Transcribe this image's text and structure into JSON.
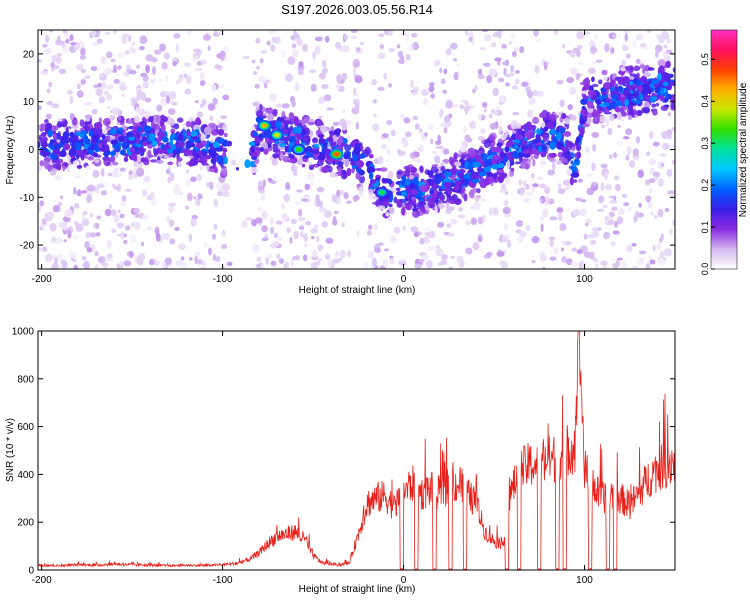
{
  "figure_title": "S197.2026.003.05.56.R14",
  "chart_data": [
    {
      "type": "heatmap",
      "title": "",
      "xlabel": "Height of straight line (km)",
      "ylabel": "Frequency (Hz)",
      "xlim": [
        -202,
        150
      ],
      "ylim": [
        -25,
        25
      ],
      "xticks": [
        -200,
        -100,
        0,
        100
      ],
      "xtick_labels": [
        "-200",
        "-100",
        "0",
        "100"
      ],
      "yticks": [
        -20,
        -10,
        0,
        10,
        20
      ],
      "ytick_labels": [
        "-20",
        "-10",
        "0",
        "10",
        "20"
      ],
      "colorbar": {
        "label": "Normalized spectral amplitude",
        "range": [
          0,
          0.57
        ],
        "ticks": [
          0.0,
          0.1,
          0.2,
          0.3,
          0.4,
          0.5
        ],
        "tick_labels": [
          "0.0",
          "0.1",
          "0.2",
          "0.3",
          "0.4",
          "0.5"
        ],
        "colors": [
          "#ffffff",
          "#d4b8f0",
          "#8a2be2",
          "#3a1ee8",
          "#0060ff",
          "#00c8ff",
          "#00e0a0",
          "#30e000",
          "#c8e800",
          "#ffb000",
          "#ff4000",
          "#ff1060",
          "#ff30c0"
        ]
      },
      "ridge": {
        "x": [
          -202,
          -180,
          -150,
          -120,
          -100,
          -85,
          -80,
          -60,
          -40,
          -30,
          -20,
          -10,
          0,
          10,
          20,
          30,
          40,
          50,
          60,
          80,
          90,
          95,
          100,
          120,
          150
        ],
        "freq": [
          1,
          1,
          2,
          2,
          0,
          -3,
          4,
          2,
          0,
          -1,
          -4,
          -9,
          -8,
          -9,
          -8,
          -6,
          -4,
          -2,
          0,
          3,
          2,
          -5,
          10,
          12,
          13
        ]
      },
      "hotspots": [
        {
          "x": -77,
          "freq": 5,
          "value": 0.42
        },
        {
          "x": -70,
          "freq": 3,
          "value": 0.38
        },
        {
          "x": -58,
          "freq": 0,
          "value": 0.33
        },
        {
          "x": -37,
          "freq": -1,
          "value": 0.46
        },
        {
          "x": -12,
          "freq": -9,
          "value": 0.31
        }
      ]
    },
    {
      "type": "line",
      "title": "",
      "xlabel": "Height of straight line (km)",
      "ylabel": "SNR (10 * v/v)",
      "xlim": [
        -202,
        150
      ],
      "ylim": [
        0,
        1000
      ],
      "xticks": [
        -200,
        -100,
        0,
        100
      ],
      "xtick_labels": [
        "-200",
        "-100",
        "0",
        "100"
      ],
      "yticks": [
        0,
        200,
        400,
        600,
        800,
        1000
      ],
      "ytick_labels": [
        "0",
        "200",
        "400",
        "600",
        "800",
        "1000"
      ],
      "line_color": "#e8201a",
      "series": [
        {
          "name": "SNR",
          "x": [
            -202,
            -190,
            -180,
            -170,
            -160,
            -150,
            -140,
            -130,
            -120,
            -110,
            -100,
            -92,
            -85,
            -80,
            -75,
            -70,
            -65,
            -60,
            -55,
            -50,
            -45,
            -40,
            -35,
            -30,
            -25,
            -20,
            -15,
            -10,
            -5,
            0,
            5,
            10,
            15,
            20,
            25,
            30,
            35,
            40,
            45,
            50,
            55,
            60,
            65,
            70,
            75,
            80,
            85,
            90,
            95,
            97,
            100,
            105,
            110,
            115,
            120,
            125,
            130,
            135,
            140,
            145,
            150
          ],
          "values": [
            20,
            18,
            22,
            20,
            25,
            22,
            20,
            18,
            20,
            19,
            22,
            28,
            45,
            70,
            110,
            140,
            150,
            160,
            130,
            60,
            30,
            25,
            20,
            30,
            150,
            280,
            300,
            310,
            260,
            330,
            360,
            320,
            340,
            320,
            350,
            360,
            320,
            280,
            160,
            120,
            110,
            340,
            420,
            440,
            440,
            460,
            470,
            500,
            520,
            1000,
            420,
            340,
            300,
            320,
            300,
            270,
            320,
            380,
            420,
            440,
            460
          ]
        }
      ],
      "dropout_ranges": [
        [
          -2,
          0
        ],
        [
          6,
          8
        ],
        [
          16,
          18
        ],
        [
          25,
          27
        ],
        [
          33,
          35
        ],
        [
          56,
          58
        ],
        [
          63,
          65
        ],
        [
          74,
          76
        ],
        [
          84,
          86
        ],
        [
          88,
          90
        ],
        [
          102,
          104
        ],
        [
          112,
          114
        ],
        [
          116,
          118
        ]
      ]
    }
  ]
}
